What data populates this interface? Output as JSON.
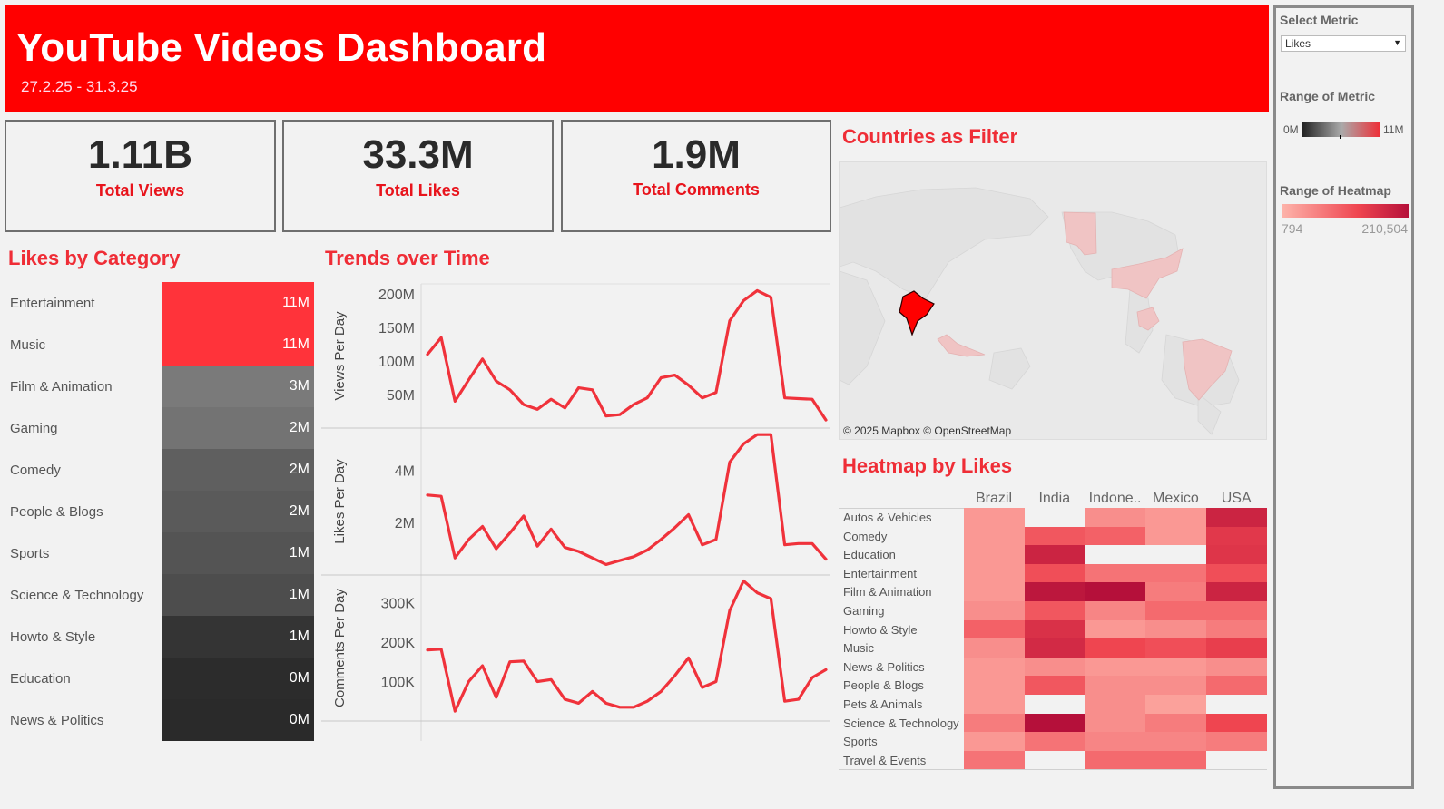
{
  "header": {
    "title": "YouTube Videos Dashboard",
    "date_range": "27.2.25  -  31.3.25"
  },
  "kpis": [
    {
      "value": "1.11B",
      "label": "Total Views"
    },
    {
      "value": "33.3M",
      "label": "Total Likes"
    },
    {
      "value": "1.9M",
      "label": "Total Comments"
    }
  ],
  "sections": {
    "likes_by_category": "Likes by Category",
    "trends": "Trends over Time",
    "countries": "Countries as Filter",
    "heatmap": "Heatmap by Likes"
  },
  "map": {
    "attribution": "© 2025 Mapbox © OpenStreetMap",
    "selected_country": "India"
  },
  "sidebar": {
    "select_metric_title": "Select Metric",
    "select_metric_value": "Likes",
    "range_metric_title": "Range of Metric",
    "range_metric_min": "0M",
    "range_metric_max": "11M",
    "range_heatmap_title": "Range of Heatmap",
    "range_heatmap_min": "794",
    "range_heatmap_max": "210,504"
  },
  "colors": {
    "brand_red": "#ff0000",
    "accent": "#ef2d36",
    "line": "#f0323b",
    "heat_low": "#fdb3aa",
    "heat_high": "#b5103a"
  },
  "chart_data": [
    {
      "type": "bar",
      "title": "Likes by Category",
      "categories": [
        "Entertainment",
        "Music",
        "Film & Animation",
        "Gaming",
        "Comedy",
        "People & Blogs",
        "Sports",
        "Science & Technology",
        "Howto & Style",
        "Education",
        "News & Politics"
      ],
      "values": [
        11,
        11,
        3,
        2,
        2,
        2,
        1,
        1,
        1,
        0,
        0
      ],
      "value_labels": [
        "11M",
        "11M",
        "3M",
        "2M",
        "2M",
        "2M",
        "1M",
        "1M",
        "1M",
        "0M",
        "0M"
      ],
      "unit": "M",
      "bar_colors": [
        "#ff333a",
        "#ff333a",
        "#7a7a7a",
        "#737373",
        "#5f5f5f",
        "#5a5a5a",
        "#545454",
        "#4d4d4d",
        "#343434",
        "#2c2c2c",
        "#2a2a2a"
      ]
    },
    {
      "type": "line",
      "title": "Trends over Time",
      "panels": [
        {
          "ylabel": "Views Per Day",
          "yticks": [
            50,
            100,
            150,
            200
          ],
          "ytick_labels": [
            "50M",
            "100M",
            "150M",
            "200M"
          ],
          "ylim": [
            0,
            215
          ],
          "values": [
            110,
            135,
            40,
            72,
            103,
            70,
            57,
            35,
            28,
            43,
            30,
            60,
            57,
            18,
            20,
            35,
            45,
            75,
            79,
            64,
            45,
            53,
            160,
            190,
            205,
            195,
            45,
            44,
            43,
            12
          ]
        },
        {
          "ylabel": "Likes Per Day",
          "yticks": [
            2,
            4
          ],
          "ytick_labels": [
            "2M",
            "4M"
          ],
          "ylim": [
            0,
            5.6
          ],
          "values": [
            3.05,
            3.0,
            0.65,
            1.35,
            1.85,
            1.0,
            1.6,
            2.25,
            1.1,
            1.75,
            1.05,
            0.9,
            0.65,
            0.4,
            0.55,
            0.7,
            0.95,
            1.35,
            1.8,
            2.3,
            1.15,
            1.35,
            4.3,
            5.0,
            5.35,
            5.35,
            1.15,
            1.2,
            1.2,
            0.6
          ]
        },
        {
          "ylabel": "Comments Per Day",
          "yticks": [
            100,
            200,
            300
          ],
          "ytick_labels": [
            "100K",
            "200K",
            "300K"
          ],
          "ylim": [
            0,
            370
          ],
          "values": [
            180,
            182,
            25,
            100,
            140,
            60,
            150,
            152,
            100,
            105,
            55,
            45,
            75,
            45,
            35,
            35,
            50,
            75,
            115,
            160,
            85,
            100,
            280,
            355,
            325,
            310,
            50,
            55,
            110,
            130
          ]
        }
      ]
    },
    {
      "type": "heatmap",
      "title": "Heatmap by Likes",
      "columns": [
        "Brazil",
        "India",
        "Indone..",
        "Mexico",
        "USA"
      ],
      "rows": [
        "Autos & Vehicles",
        "Comedy",
        "Education",
        "Entertainment",
        "Film & Animation",
        "Gaming",
        "Howto & Style",
        "Music",
        "News & Politics",
        "People & Blogs",
        "Pets & Animals",
        "Science & Technology",
        "Sports",
        "Travel & Events"
      ],
      "values": [
        [
          0.15,
          null,
          0.2,
          0.15,
          0.85
        ],
        [
          0.15,
          0.5,
          0.45,
          0.15,
          0.7
        ],
        [
          0.15,
          0.85,
          null,
          null,
          0.72
        ],
        [
          0.15,
          0.55,
          0.35,
          0.35,
          0.55
        ],
        [
          0.15,
          0.95,
          1.0,
          0.3,
          0.85
        ],
        [
          0.2,
          0.5,
          0.25,
          0.4,
          0.4
        ],
        [
          0.45,
          0.75,
          0.15,
          0.2,
          0.3
        ],
        [
          0.2,
          0.8,
          0.6,
          0.55,
          0.65
        ],
        [
          0.15,
          0.2,
          0.15,
          0.15,
          0.2
        ],
        [
          0.15,
          0.5,
          0.2,
          0.2,
          0.4
        ],
        [
          0.15,
          null,
          0.2,
          0.1,
          null
        ],
        [
          0.3,
          1.0,
          0.2,
          0.3,
          0.6
        ],
        [
          0.15,
          0.35,
          0.25,
          0.25,
          0.3
        ],
        [
          0.35,
          null,
          0.4,
          0.4,
          null
        ]
      ],
      "legend_range": [
        794,
        210504
      ]
    }
  ]
}
